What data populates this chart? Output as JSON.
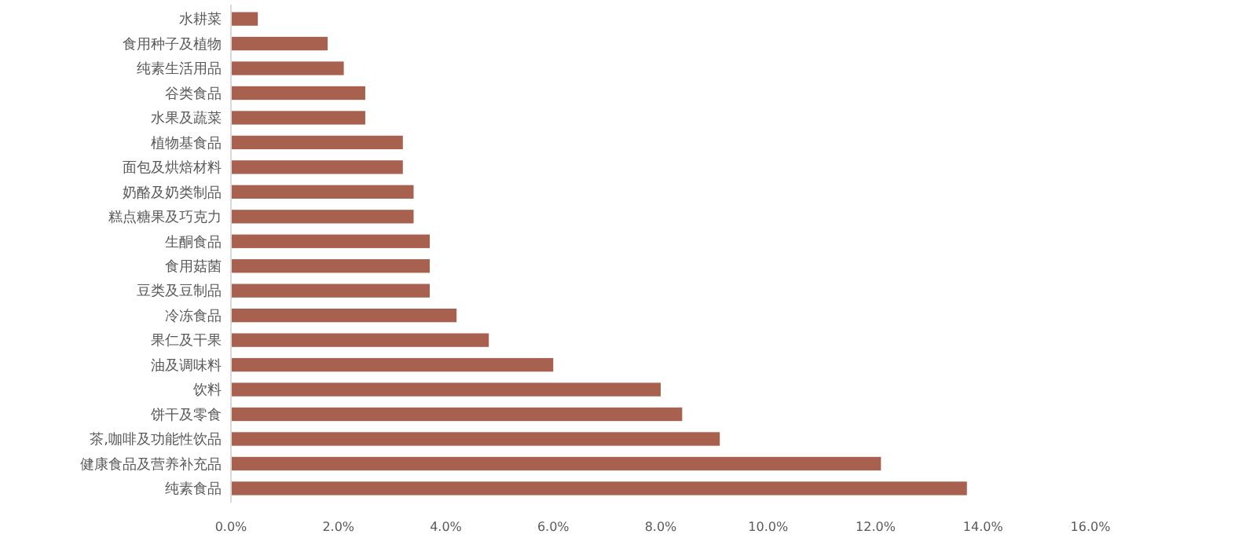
{
  "chart_data": {
    "type": "bar",
    "orientation": "horizontal",
    "categories": [
      "水耕菜",
      "食用种子及植物",
      "纯素生活用品",
      "谷类食品",
      "水果及蔬菜",
      "植物基食品",
      "面包及烘焙材料",
      "奶酪及奶类制品",
      "糕点糖果及巧克力",
      "生酮食品",
      "食用菇菌",
      "豆类及豆制品",
      "冷冻食品",
      "果仁及干果",
      "油及调味料",
      "饮料",
      "饼干及零食",
      "茶,咖啡及功能性饮品",
      "健康食品及营养补充品",
      "纯素食品"
    ],
    "values": [
      0.5,
      1.8,
      2.1,
      2.5,
      2.5,
      3.2,
      3.2,
      3.4,
      3.4,
      3.7,
      3.7,
      3.7,
      4.2,
      4.8,
      6.0,
      8.0,
      8.4,
      9.1,
      12.1,
      13.7
    ],
    "color": "#a8604f",
    "xlim": [
      0,
      16
    ],
    "xticks": [
      {
        "value": 0,
        "label": "0.0%"
      },
      {
        "value": 2,
        "label": "2.0%"
      },
      {
        "value": 4,
        "label": "4.0%"
      },
      {
        "value": 6,
        "label": "6.0%"
      },
      {
        "value": 8,
        "label": "8.0%"
      },
      {
        "value": 10,
        "label": "10.0%"
      },
      {
        "value": 12,
        "label": "12.0%"
      },
      {
        "value": 14,
        "label": "14.0%"
      },
      {
        "value": 16,
        "label": "16.0%"
      }
    ],
    "grid": false
  }
}
